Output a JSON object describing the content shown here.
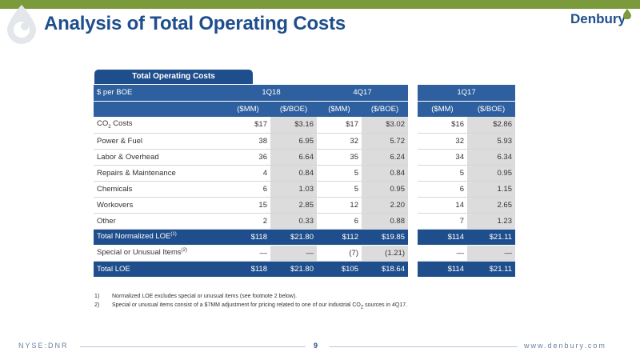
{
  "header": {
    "title": "Analysis of Total Operating Costs",
    "brand": "Denbury"
  },
  "table": {
    "tab_label": "Total Operating Costs",
    "row_header": "$ per BOE",
    "periods": [
      "1Q18",
      "4Q17",
      "1Q17"
    ],
    "units": [
      "($MM)",
      "($/BOE)"
    ],
    "rows": [
      {
        "label_main": "CO",
        "label_sub": "2",
        "label_rest": " Costs",
        "values": [
          "$17",
          "$3.16",
          "$17",
          "$3.02",
          "$16",
          "$2.86"
        ]
      },
      {
        "label": "Power & Fuel",
        "values": [
          "38",
          "6.95",
          "32",
          "5.72",
          "32",
          "5.93"
        ]
      },
      {
        "label": "Labor & Overhead",
        "values": [
          "36",
          "6.64",
          "35",
          "6.24",
          "34",
          "6.34"
        ]
      },
      {
        "label": "Repairs & Maintenance",
        "values": [
          "4",
          "0.84",
          "5",
          "0.84",
          "5",
          "0.95"
        ]
      },
      {
        "label": "Chemicals",
        "values": [
          "6",
          "1.03",
          "5",
          "0.95",
          "6",
          "1.15"
        ]
      },
      {
        "label": "Workovers",
        "values": [
          "15",
          "2.85",
          "12",
          "2.20",
          "14",
          "2.65"
        ]
      },
      {
        "label": "Other",
        "values": [
          "2",
          "0.33",
          "6",
          "0.88",
          "7",
          "1.23"
        ]
      }
    ],
    "normalized": {
      "label": "Total Normalized LOE",
      "sup": "(1)",
      "values": [
        "$118",
        "$21.80",
        "$112",
        "$19.85",
        "$114",
        "$21.11"
      ]
    },
    "special": {
      "label": "Special or Unusual Items",
      "sup": "(2)",
      "values": [
        "—",
        "—",
        "(7)",
        "(1.21)",
        "—",
        "—"
      ]
    },
    "total": {
      "label": "Total LOE",
      "values": [
        "$118",
        "$21.80",
        "$105",
        "$18.64",
        "$114",
        "$21.11"
      ]
    }
  },
  "footnotes": [
    {
      "num": "1)",
      "text": "Normalized LOE excludes special or unusual items (see footnote 2 below)."
    },
    {
      "num": "2)",
      "text_a": "Special or unusual items consist of a $7MM adjustment for pricing related to one of our industrial CO",
      "text_sub": "2",
      "text_b": " sources in 4Q17."
    }
  ],
  "footer": {
    "ticker": "NYSE:DNR",
    "page": "9",
    "site": "www.denbury.com"
  },
  "colors": {
    "accent_green": "#7a9a3b",
    "brand_blue": "#1f4e8c",
    "header_blue": "#2e5f9e"
  }
}
